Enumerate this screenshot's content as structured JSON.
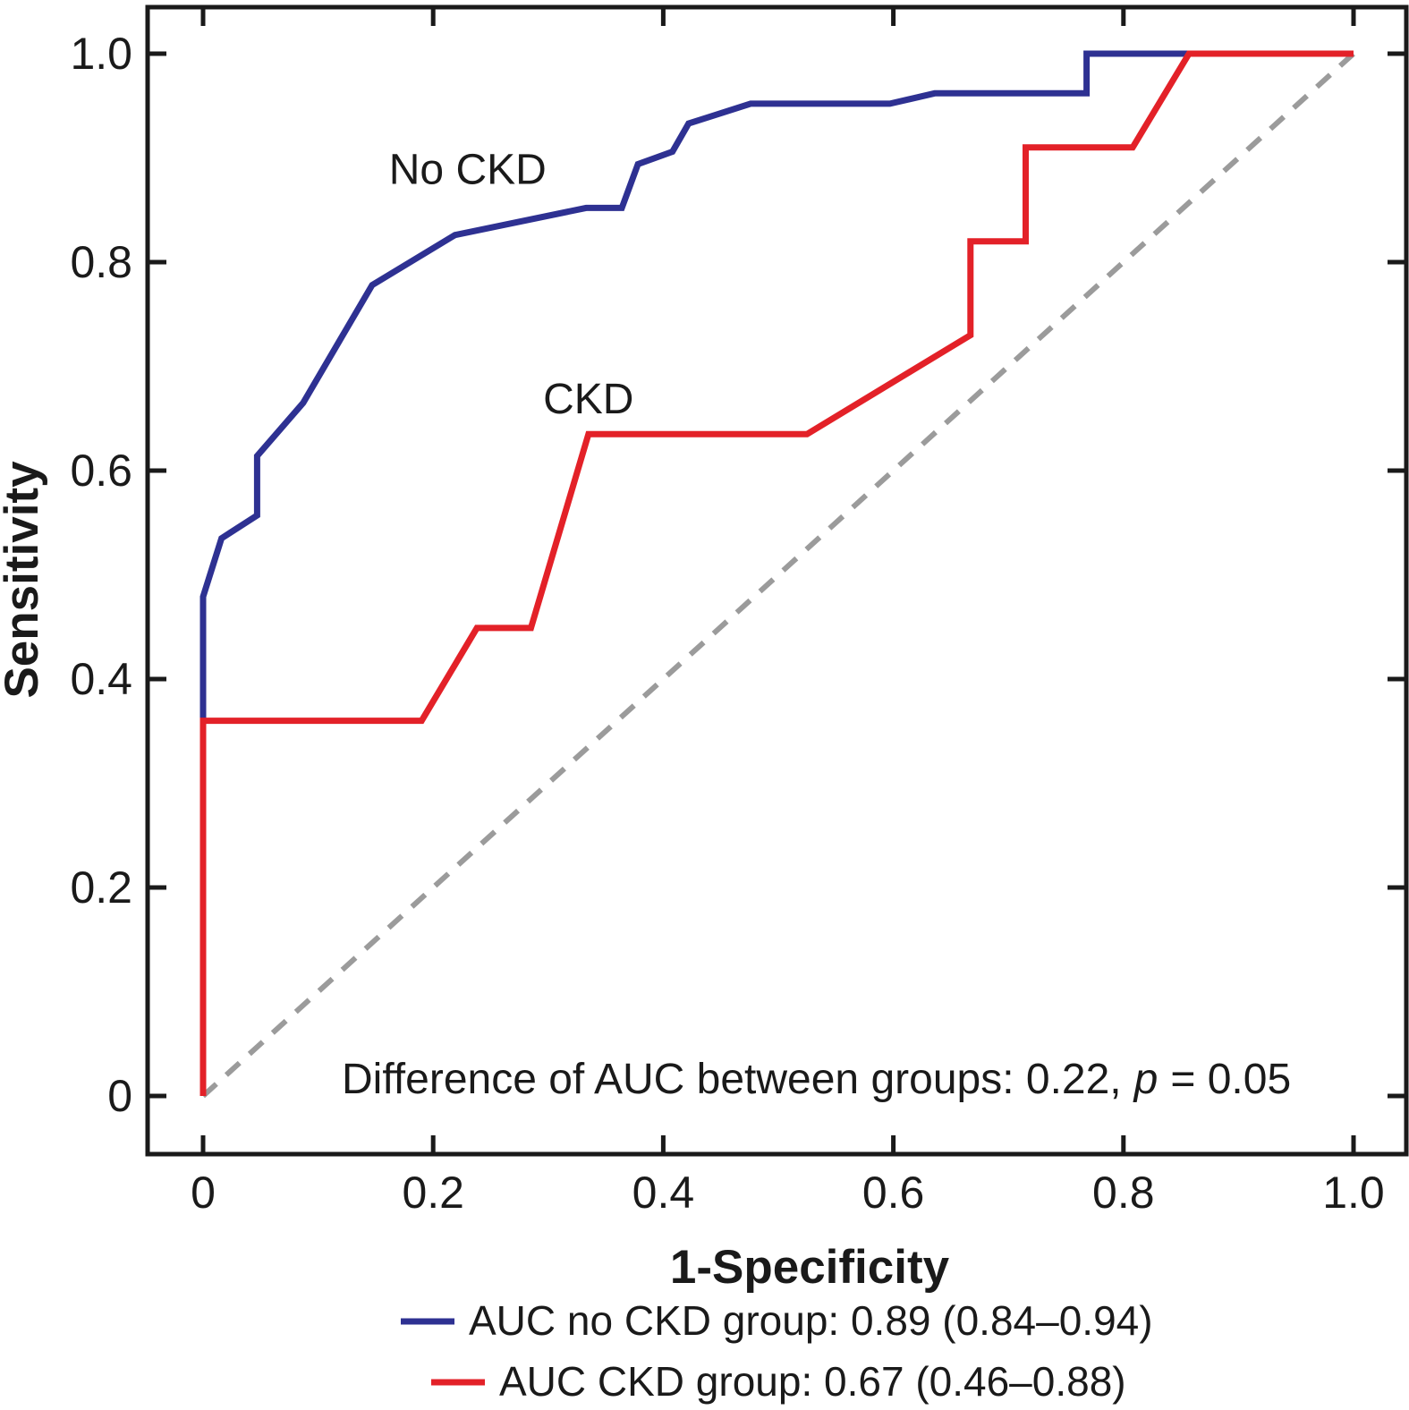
{
  "colors": {
    "axis": "#1a1a1a",
    "background": "#ffffff",
    "no_ckd_blue": "#2e3192",
    "ckd_red": "#e32128",
    "reference_gray": "#9b9b9b"
  },
  "chart_data": {
    "type": "line",
    "subtype": "ROC curve",
    "title": "",
    "xlabel": "1-Specificity",
    "ylabel": "Sensitivity",
    "xlim": [
      0,
      1
    ],
    "ylim": [
      0,
      1
    ],
    "grid": false,
    "legend_position": "bottom",
    "xticks": {
      "values": [
        0,
        0.2,
        0.4,
        0.6,
        0.8,
        1
      ],
      "labels": [
        "0",
        "0.2",
        "0.4",
        "0.6",
        "0.8",
        "1.0"
      ]
    },
    "yticks": {
      "values": [
        0,
        0.2,
        0.4,
        0.6,
        0.8,
        1
      ],
      "labels": [
        "0",
        "0.2",
        "0.4",
        "0.6",
        "0.8",
        "1.0"
      ]
    },
    "series": [
      {
        "name": "No CKD",
        "color": "#2e3192",
        "curve_label": "No CKD",
        "curve_label_pos": [
          0.23,
          0.875
        ],
        "auc": "0.89 (0.84–0.94)",
        "points": [
          [
            0,
            0
          ],
          [
            0,
            0.479
          ],
          [
            0.016,
            0.535
          ],
          [
            0.047,
            0.557
          ],
          [
            0.047,
            0.614
          ],
          [
            0.087,
            0.665
          ],
          [
            0.147,
            0.778
          ],
          [
            0.219,
            0.826
          ],
          [
            0.333,
            0.852
          ],
          [
            0.364,
            0.852
          ],
          [
            0.378,
            0.894
          ],
          [
            0.408,
            0.906
          ],
          [
            0.422,
            0.933
          ],
          [
            0.476,
            0.952
          ],
          [
            0.597,
            0.952
          ],
          [
            0.636,
            0.962
          ],
          [
            0.768,
            0.962
          ],
          [
            0.768,
            1
          ],
          [
            1,
            1
          ]
        ]
      },
      {
        "name": "CKD",
        "color": "#e32128",
        "curve_label": "CKD",
        "curve_label_pos": [
          0.335,
          0.655
        ],
        "auc": "0.67 (0.46–0.88)",
        "points": [
          [
            0,
            0
          ],
          [
            0,
            0.36
          ],
          [
            0.19,
            0.36
          ],
          [
            0.238,
            0.449
          ],
          [
            0.285,
            0.449
          ],
          [
            0.335,
            0.635
          ],
          [
            0.525,
            0.635
          ],
          [
            0.667,
            0.73
          ],
          [
            0.667,
            0.82
          ],
          [
            0.715,
            0.82
          ],
          [
            0.715,
            0.91
          ],
          [
            0.808,
            0.91
          ],
          [
            0.857,
            1
          ],
          [
            1,
            1
          ]
        ]
      }
    ],
    "reference_line": {
      "name": "chance-diagonal",
      "style": "dashed",
      "color": "#9b9b9b",
      "points": [
        [
          0,
          0
        ],
        [
          1,
          1
        ]
      ]
    },
    "annotation": {
      "prefix": "Difference of AUC between groups: 0.22,",
      "p_symbol": "p",
      "suffix": "= 0.05"
    }
  },
  "legend": {
    "items": [
      {
        "label": "AUC no CKD group: 0.89 (0.84–0.94)",
        "color": "#2e3192"
      },
      {
        "label": "AUC CKD group: 0.67 (0.46–0.88)",
        "color": "#e32128"
      }
    ]
  }
}
